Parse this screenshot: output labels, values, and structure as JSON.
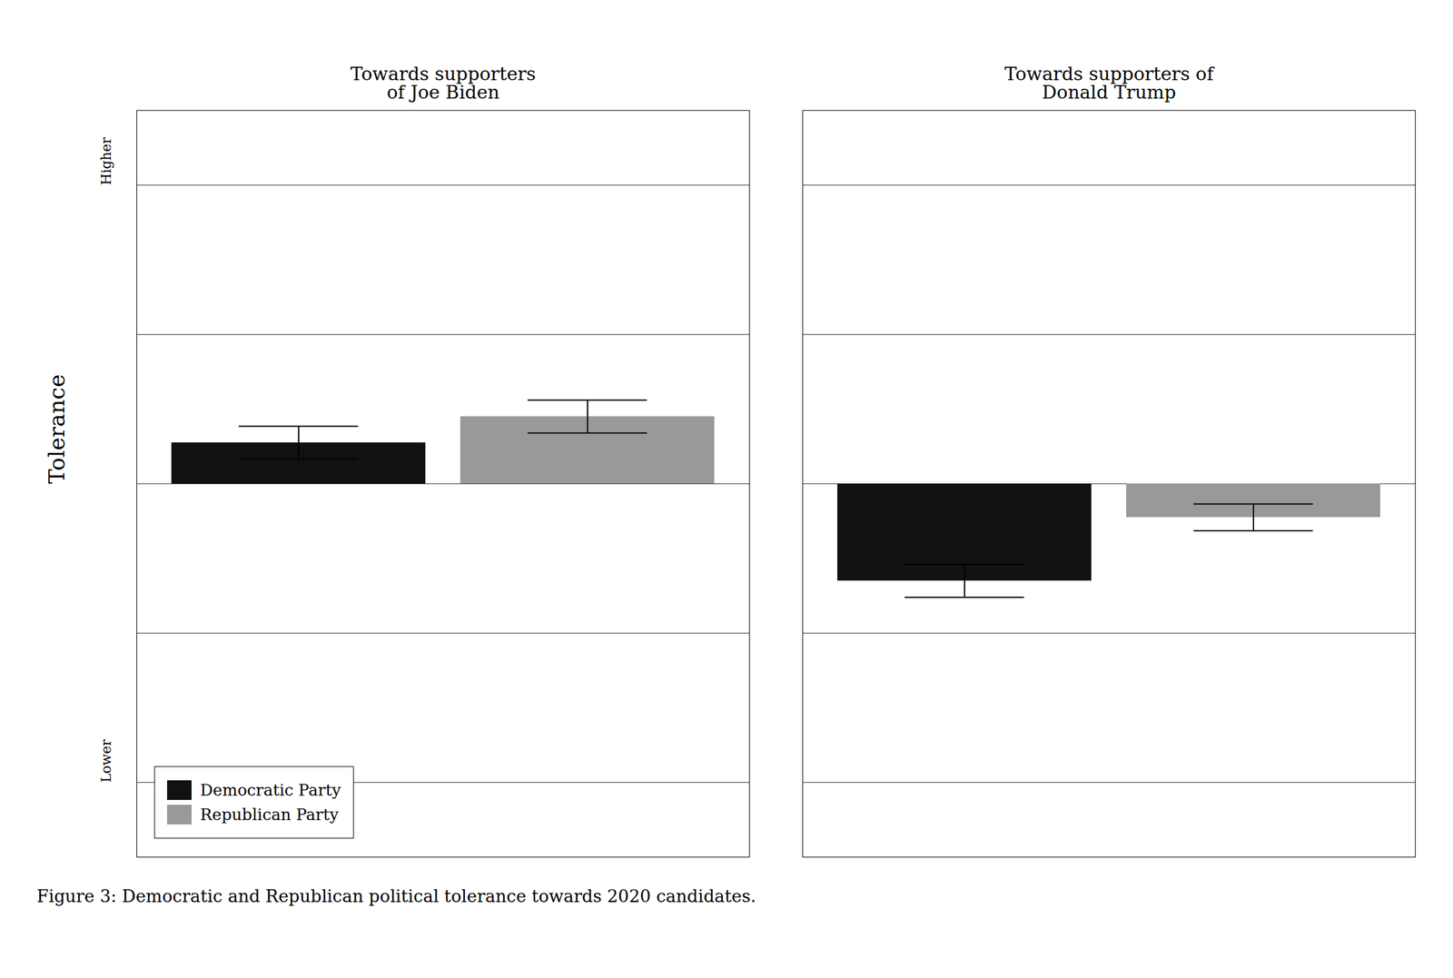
{
  "chart_data": {
    "type": "bar",
    "categories": [
      "Towards supporters\nof Joe Biden",
      "Towards supporters of\nDonald Trump"
    ],
    "series": [
      {
        "name": "Democratic Party",
        "color": "#111111",
        "values": [
          0.055,
          -0.13
        ],
        "errors": [
          0.022,
          0.022
        ]
      },
      {
        "name": "Republican Party",
        "color": "#999999",
        "values": [
          0.09,
          -0.045
        ],
        "errors": [
          0.022,
          0.018
        ]
      }
    ],
    "ylabel": "Tolerance",
    "caption": "Figure 3: Democratic and Republican political tolerance towards 2020 candidates.",
    "annotations": [
      {
        "text": "Higher",
        "y": 0.4
      },
      {
        "text": "Lower",
        "y": -0.4
      }
    ],
    "ylim": [
      -0.5,
      0.5
    ],
    "yticks": [
      -0.4,
      -0.2,
      0,
      0.2,
      0.4
    ],
    "grid": true,
    "legend": "lower left",
    "tick_labels": "x"
  }
}
